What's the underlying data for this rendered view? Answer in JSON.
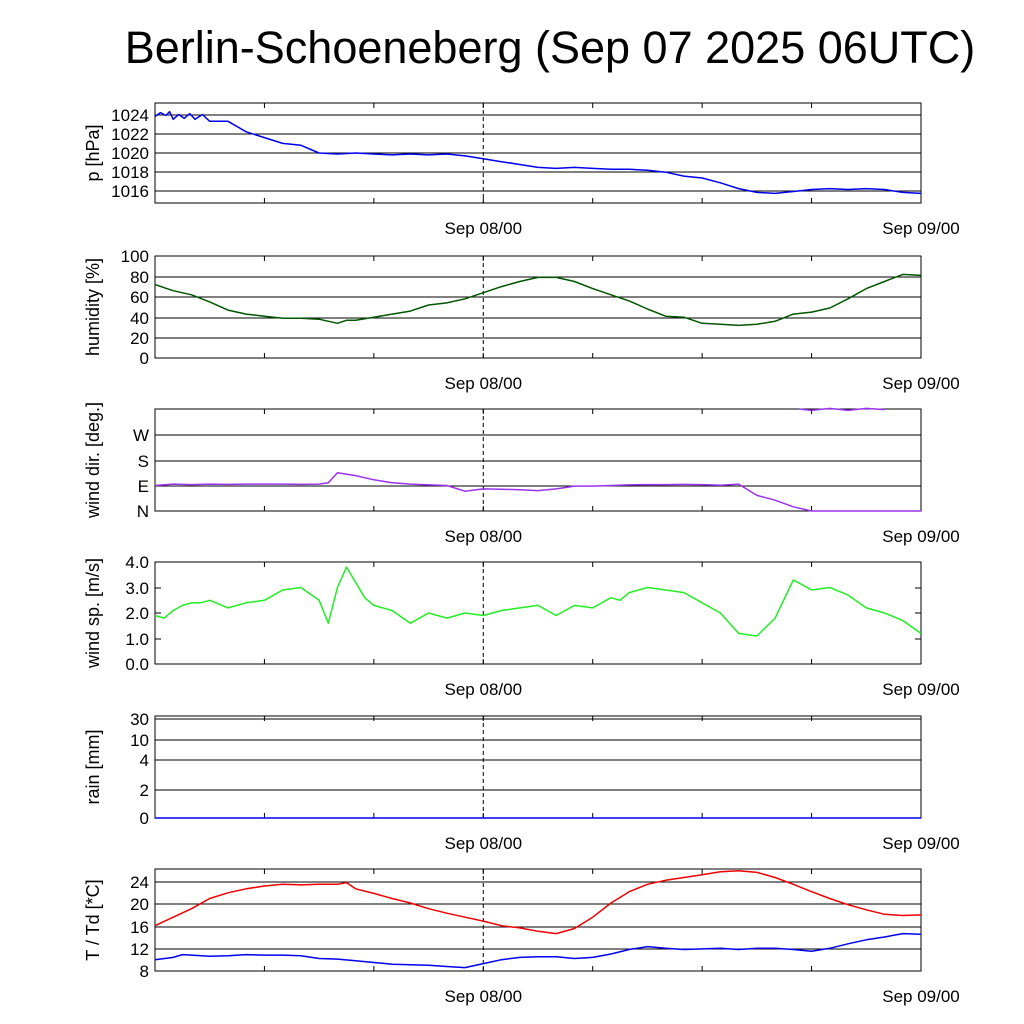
{
  "title": "Berlin-Schoeneberg (Sep 07 2025 06UTC)",
  "chart_data": [
    {
      "type": "line",
      "ylabel": "p [hPa]",
      "yticks": [
        "1016",
        "1018",
        "1020",
        "1022",
        "1024"
      ],
      "ylim": [
        1014.8,
        1025.2
      ],
      "xlim": [
        0,
        42
      ],
      "marker_x": 18,
      "xtick_labels": [
        {
          "x": 18,
          "label": "Sep 08/00"
        },
        {
          "x": 42,
          "label": "Sep 09/00"
        }
      ],
      "grid": true,
      "series": [
        {
          "color": "#0000ee",
          "x": [
            0,
            0.3,
            0.6,
            0.8,
            1.0,
            1.3,
            1.6,
            1.9,
            2.2,
            2.6,
            3,
            4,
            5,
            6,
            7,
            8,
            9,
            10,
            11,
            12,
            13,
            14,
            15,
            16,
            17,
            18,
            19,
            20,
            21,
            22,
            23,
            24,
            25,
            26,
            27,
            28,
            29,
            30,
            31,
            32,
            33,
            34,
            35,
            36,
            37,
            38,
            39,
            40,
            41,
            42
          ],
          "y": [
            1023.8,
            1024.2,
            1023.9,
            1024.3,
            1023.5,
            1024.0,
            1023.6,
            1024.1,
            1023.5,
            1024.0,
            1023.3,
            1023.3,
            1022.2,
            1021.6,
            1021.0,
            1020.8,
            1020.0,
            1019.9,
            1020.0,
            1019.9,
            1019.8,
            1019.9,
            1019.8,
            1019.9,
            1019.7,
            1019.4,
            1019.1,
            1018.8,
            1018.5,
            1018.4,
            1018.5,
            1018.4,
            1018.3,
            1018.3,
            1018.2,
            1018.0,
            1017.6,
            1017.4,
            1016.9,
            1016.3,
            1015.9,
            1015.8,
            1016.0,
            1016.2,
            1016.3,
            1016.2,
            1016.3,
            1016.2,
            1015.9,
            1015.8
          ]
        }
      ]
    },
    {
      "type": "line",
      "ylabel": "humidity [%]",
      "yticks": [
        "0",
        "20",
        "40",
        "60",
        "80",
        "100"
      ],
      "ylim": [
        0,
        100
      ],
      "xlim": [
        0,
        42
      ],
      "marker_x": 18,
      "xtick_labels": [
        {
          "x": 18,
          "label": "Sep 08/00"
        },
        {
          "x": 42,
          "label": "Sep 09/00"
        }
      ],
      "grid": true,
      "series": [
        {
          "color": "#005500",
          "x": [
            0,
            1,
            2,
            3,
            4,
            5,
            6,
            7,
            8,
            9,
            10,
            10.5,
            11,
            12,
            13,
            14,
            15,
            16,
            17,
            18,
            19,
            20,
            21,
            22,
            23,
            24,
            25,
            26,
            27,
            28,
            29,
            30,
            31,
            32,
            33,
            34,
            35,
            36,
            37,
            38,
            39,
            40,
            41,
            42
          ],
          "y": [
            72,
            66,
            62,
            55,
            47,
            43,
            41,
            39,
            39,
            38,
            34,
            37,
            37,
            40,
            43,
            46,
            52,
            54,
            58,
            64,
            70,
            75,
            79,
            79,
            75,
            68,
            62,
            56,
            48,
            41,
            40,
            34,
            33,
            32,
            33,
            36,
            43,
            45,
            49,
            58,
            68,
            75,
            82,
            81
          ]
        }
      ]
    },
    {
      "type": "line",
      "ylabel": "wind dir. [deg.]",
      "yticks": [
        "N",
        "E",
        "S",
        "W"
      ],
      "ylim": [
        0,
        360
      ],
      "xlim": [
        0,
        42
      ],
      "marker_x": 18,
      "xtick_labels": [
        {
          "x": 18,
          "label": "Sep 08/00"
        },
        {
          "x": 42,
          "label": "Sep 09/00"
        }
      ],
      "grid": true,
      "series": [
        {
          "color": "#9933ee",
          "x": [
            0,
            1,
            2,
            3,
            4,
            5,
            6,
            7,
            8,
            9,
            9.5,
            10,
            11,
            12,
            13,
            14,
            15,
            16,
            17,
            18,
            19,
            20,
            21,
            22,
            23,
            24,
            25,
            26,
            27,
            28,
            29,
            30,
            31,
            32,
            33,
            34,
            35,
            36,
            37,
            38,
            39,
            40,
            41,
            42
          ],
          "y": [
            90,
            95,
            93,
            95,
            94,
            95,
            95,
            95,
            94,
            95,
            100,
            135,
            125,
            110,
            100,
            95,
            92,
            90,
            70,
            78,
            77,
            75,
            72,
            78,
            88,
            88,
            90,
            92,
            93,
            93,
            94,
            93,
            91,
            95,
            55,
            38,
            15,
            0,
            0,
            0,
            0,
            0,
            0,
            0
          ]
        },
        {
          "color": "#9933ee",
          "x": [
            35.3,
            36,
            37,
            38,
            39,
            40
          ],
          "y": [
            360,
            355,
            362,
            355,
            362,
            358
          ]
        }
      ]
    },
    {
      "type": "line",
      "ylabel": "wind sp. [m/s]",
      "yticks": [
        "0.0",
        "1.0",
        "2.0",
        "3.0",
        "4.0"
      ],
      "ylim": [
        0,
        4
      ],
      "xlim": [
        0,
        42
      ],
      "marker_x": 18,
      "xtick_labels": [
        {
          "x": 18,
          "label": "Sep 08/00"
        },
        {
          "x": 42,
          "label": "Sep 09/00"
        }
      ],
      "grid": false,
      "series": [
        {
          "color": "#22ee22",
          "x": [
            0,
            0.5,
            1,
            1.5,
            2,
            2.5,
            3,
            4,
            5,
            6,
            7,
            8,
            9,
            9.5,
            10,
            10.5,
            11,
            11.5,
            12,
            13,
            14,
            15,
            16,
            17,
            18,
            19,
            20,
            21,
            22,
            23,
            24,
            25,
            25.5,
            26,
            27,
            28,
            29,
            30,
            31,
            32,
            33,
            34,
            35,
            36,
            37,
            38,
            39,
            40,
            41,
            42
          ],
          "y": [
            1.9,
            1.8,
            2.1,
            2.3,
            2.4,
            2.4,
            2.5,
            2.2,
            2.4,
            2.5,
            2.9,
            3.0,
            2.5,
            1.6,
            3.0,
            3.8,
            3.2,
            2.6,
            2.3,
            2.1,
            1.6,
            2.0,
            1.8,
            2.0,
            1.9,
            2.1,
            2.2,
            2.3,
            1.9,
            2.3,
            2.2,
            2.6,
            2.5,
            2.8,
            3.0,
            2.9,
            2.8,
            2.4,
            2.0,
            1.2,
            1.1,
            1.8,
            3.3,
            2.9,
            3.0,
            2.7,
            2.2,
            2.0,
            1.7,
            1.2
          ]
        }
      ]
    },
    {
      "type": "line",
      "ylabel": "rain [mm]",
      "yticks": [
        "0",
        "2",
        "4",
        "10",
        "30"
      ],
      "ylim": [
        0,
        30
      ],
      "xlim": [
        0,
        42
      ],
      "marker_x": 18,
      "xtick_labels": [
        {
          "x": 18,
          "label": "Sep 08/00"
        },
        {
          "x": 42,
          "label": "Sep 09/00"
        }
      ],
      "grid": true,
      "series": [
        {
          "color": "#0000ee",
          "x": [
            0,
            42
          ],
          "y": [
            0,
            0
          ]
        }
      ]
    },
    {
      "type": "line",
      "ylabel": "T / Td [*C]",
      "yticks": [
        "8",
        "12",
        "16",
        "20",
        "24"
      ],
      "ylim": [
        8,
        26
      ],
      "xlim": [
        0,
        42
      ],
      "marker_x": 18,
      "xtick_labels": [
        {
          "x": 18,
          "label": "Sep 08/00"
        },
        {
          "x": 42,
          "label": "Sep 09/00"
        }
      ],
      "grid": true,
      "series": [
        {
          "color": "#ee0000",
          "x": [
            0,
            1,
            2,
            3,
            4,
            5,
            6,
            7,
            8,
            9,
            10,
            10.5,
            11,
            12,
            13,
            14,
            15,
            16,
            17,
            18,
            19,
            20,
            21,
            22,
            23,
            24,
            25,
            26,
            27,
            28,
            29,
            30,
            31,
            32,
            33,
            34,
            35,
            36,
            37,
            38,
            39,
            40,
            41,
            42
          ],
          "y": [
            16.0,
            17.5,
            19.0,
            20.8,
            21.8,
            22.5,
            23.0,
            23.3,
            23.2,
            23.3,
            23.3,
            23.6,
            22.5,
            21.7,
            20.8,
            20.0,
            19.0,
            18.2,
            17.5,
            16.8,
            16.0,
            15.6,
            15.0,
            14.6,
            15.5,
            17.5,
            20.0,
            22.0,
            23.3,
            24.0,
            24.5,
            25.0,
            25.5,
            25.7,
            25.4,
            24.5,
            23.3,
            22.0,
            20.8,
            19.7,
            18.8,
            18.0,
            17.8,
            17.9
          ]
        },
        {
          "color": "#0000ee",
          "x": [
            0,
            1,
            1.5,
            2,
            3,
            4,
            5,
            6,
            7,
            8,
            9,
            10,
            11,
            12,
            13,
            14,
            15,
            16,
            17,
            18,
            19,
            20,
            21,
            22,
            23,
            24,
            25,
            26,
            27,
            28,
            29,
            30,
            31,
            32,
            33,
            34,
            35,
            36,
            37,
            38,
            39,
            40,
            41,
            42
          ],
          "y": [
            10.0,
            10.4,
            10.9,
            10.8,
            10.6,
            10.7,
            10.9,
            10.8,
            10.8,
            10.7,
            10.2,
            10.1,
            9.8,
            9.5,
            9.2,
            9.1,
            9.0,
            8.8,
            8.6,
            9.3,
            10.0,
            10.4,
            10.5,
            10.5,
            10.2,
            10.4,
            11.0,
            11.8,
            12.3,
            12.0,
            11.8,
            11.9,
            12.0,
            11.8,
            12.0,
            12.0,
            11.8,
            11.5,
            12.0,
            12.8,
            13.5,
            14.0,
            14.6,
            14.5
          ]
        }
      ]
    }
  ]
}
